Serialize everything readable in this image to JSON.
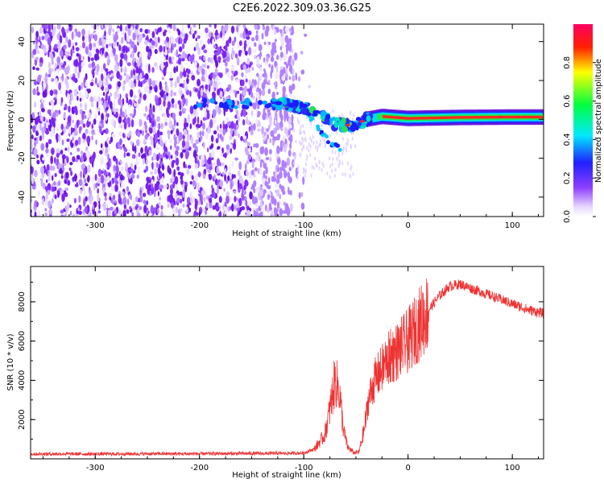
{
  "title": "C2E6.2022.309.03.36.G25",
  "chart_data": [
    {
      "type": "heatmap",
      "xlabel": "Height of straight line (km)",
      "ylabel": "Frequency (Hz)",
      "xlim": [
        -362,
        130
      ],
      "ylim": [
        -50,
        49
      ],
      "xticks": [
        -300,
        -200,
        -100,
        0,
        100
      ],
      "yticks": [
        -40,
        -20,
        0,
        20,
        40
      ],
      "colorbar": {
        "label": "Normalized spectral amplitude",
        "range": [
          0,
          1
        ],
        "ticks": [
          "0.0",
          "0.2",
          "0.4",
          "0.6",
          "0.8"
        ],
        "colormap": "rainbow (purple → blue → cyan → green → yellow → red)"
      },
      "features": {
        "noise_band_x_range": [
          -362,
          -110
        ],
        "main_signal_track": [
          {
            "x": -200,
            "y": 8
          },
          {
            "x": -150,
            "y": 8
          },
          {
            "x": -120,
            "y": 8
          },
          {
            "x": -100,
            "y": 6
          },
          {
            "x": -85,
            "y": 3
          },
          {
            "x": -70,
            "y": -2
          },
          {
            "x": -55,
            "y": -4
          },
          {
            "x": -40,
            "y": 0
          },
          {
            "x": -25,
            "y": 1.5
          },
          {
            "x": 0,
            "y": 0.5
          },
          {
            "x": 50,
            "y": 1
          },
          {
            "x": 100,
            "y": 1.2
          },
          {
            "x": 130,
            "y": 1.2
          }
        ],
        "secondary_branch": [
          {
            "x": -95,
            "y": 2
          },
          {
            "x": -85,
            "y": -5
          },
          {
            "x": -75,
            "y": -12
          },
          {
            "x": -65,
            "y": -15
          }
        ]
      }
    },
    {
      "type": "line",
      "xlabel": "Height of straight line (km)",
      "ylabel": "SNR (10 * v/v)",
      "xlim": [
        -362,
        130
      ],
      "ylim": [
        0,
        9800
      ],
      "xticks": [
        -300,
        -200,
        -100,
        0,
        100
      ],
      "yticks": [
        2000,
        4000,
        6000,
        8000
      ],
      "series": [
        {
          "color": "#ee3333",
          "envelope": [
            {
              "x": -362,
              "y": 250
            },
            {
              "x": -300,
              "y": 250
            },
            {
              "x": -200,
              "y": 260
            },
            {
              "x": -120,
              "y": 280
            },
            {
              "x": -100,
              "y": 300
            },
            {
              "x": -90,
              "y": 500
            },
            {
              "x": -80,
              "y": 1200
            },
            {
              "x": -75,
              "y": 2500
            },
            {
              "x": -70,
              "y": 4000
            },
            {
              "x": -66,
              "y": 3500
            },
            {
              "x": -62,
              "y": 1500
            },
            {
              "x": -58,
              "y": 600
            },
            {
              "x": -52,
              "y": 300
            },
            {
              "x": -47,
              "y": 350
            },
            {
              "x": -42,
              "y": 1500
            },
            {
              "x": -38,
              "y": 3000
            },
            {
              "x": -32,
              "y": 4000
            },
            {
              "x": -26,
              "y": 4500
            },
            {
              "x": -20,
              "y": 5000
            },
            {
              "x": -15,
              "y": 5300
            },
            {
              "x": -10,
              "y": 5500
            },
            {
              "x": 0,
              "y": 6000
            },
            {
              "x": 10,
              "y": 6800
            },
            {
              "x": 20,
              "y": 7600
            },
            {
              "x": 30,
              "y": 8300
            },
            {
              "x": 40,
              "y": 8800
            },
            {
              "x": 50,
              "y": 8900
            },
            {
              "x": 60,
              "y": 8700
            },
            {
              "x": 80,
              "y": 8300
            },
            {
              "x": 100,
              "y": 7900
            },
            {
              "x": 115,
              "y": 7600
            },
            {
              "x": 130,
              "y": 7400
            }
          ]
        }
      ]
    }
  ]
}
